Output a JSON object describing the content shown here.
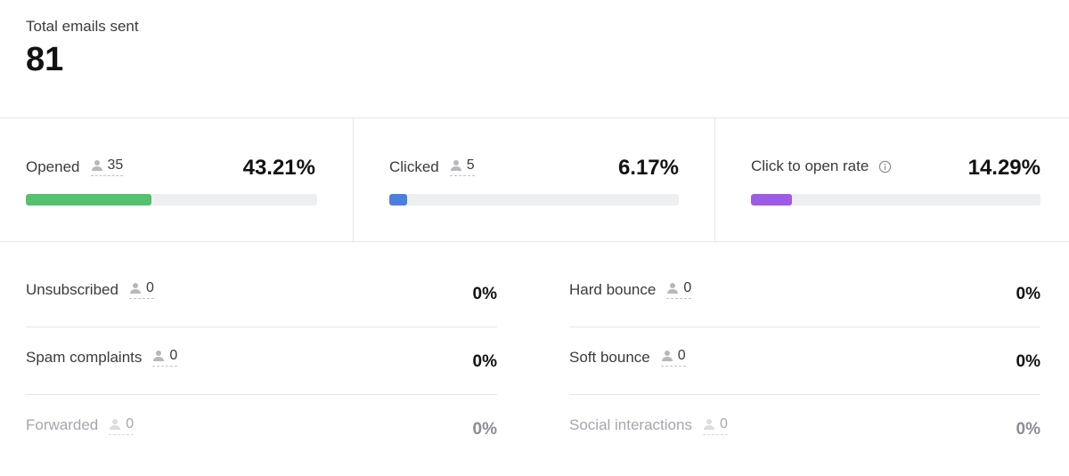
{
  "total": {
    "label": "Total emails sent",
    "value": "81"
  },
  "metrics": [
    {
      "label": "Opened",
      "count": "35",
      "percent": "43.21%",
      "fill": 0.4321,
      "color": "#55c06e"
    },
    {
      "label": "Clicked",
      "count": "5",
      "percent": "6.17%",
      "fill": 0.0617,
      "color": "#4a7fe0"
    },
    {
      "label": "Click to open rate",
      "percent": "14.29%",
      "fill": 0.1429,
      "color": "#9e5be6",
      "icon": "info-icon"
    }
  ],
  "stats_left": [
    {
      "label": "Unsubscribed",
      "count": "0",
      "percent": "0%"
    },
    {
      "label": "Spam complaints",
      "count": "0",
      "percent": "0%"
    },
    {
      "label": "Forwarded",
      "count": "0",
      "percent": "0%"
    }
  ],
  "stats_right": [
    {
      "label": "Hard bounce",
      "count": "0",
      "percent": "0%"
    },
    {
      "label": "Soft bounce",
      "count": "0",
      "percent": "0%"
    },
    {
      "label": "Social interactions",
      "count": "0",
      "percent": "0%"
    }
  ]
}
